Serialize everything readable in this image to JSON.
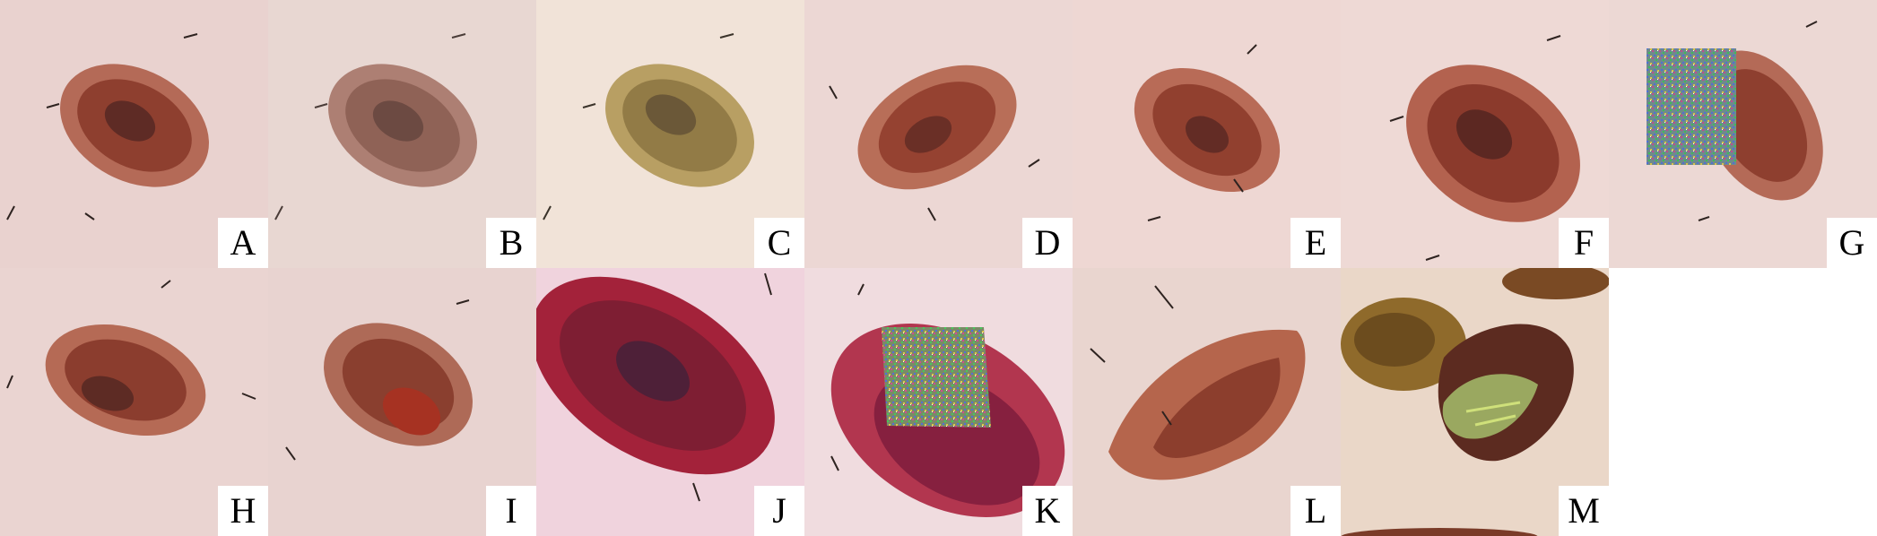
{
  "figure": {
    "panels": [
      {
        "label": "A",
        "variant": "original"
      },
      {
        "label": "B",
        "variant": "desaturated"
      },
      {
        "label": "C",
        "variant": "yellow-tint"
      },
      {
        "label": "D",
        "variant": "rotated"
      },
      {
        "label": "E",
        "variant": "shifted"
      },
      {
        "label": "F",
        "variant": "zoomed"
      },
      {
        "label": "G",
        "variant": "noise-patch"
      },
      {
        "label": "H",
        "variant": "flipped"
      },
      {
        "label": "I",
        "variant": "blurred-edge"
      },
      {
        "label": "J",
        "variant": "saturated-red"
      },
      {
        "label": "K",
        "variant": "red-noise-patch"
      },
      {
        "label": "L",
        "variant": "warped"
      },
      {
        "label": "M",
        "variant": "mixed-lesion"
      }
    ]
  }
}
